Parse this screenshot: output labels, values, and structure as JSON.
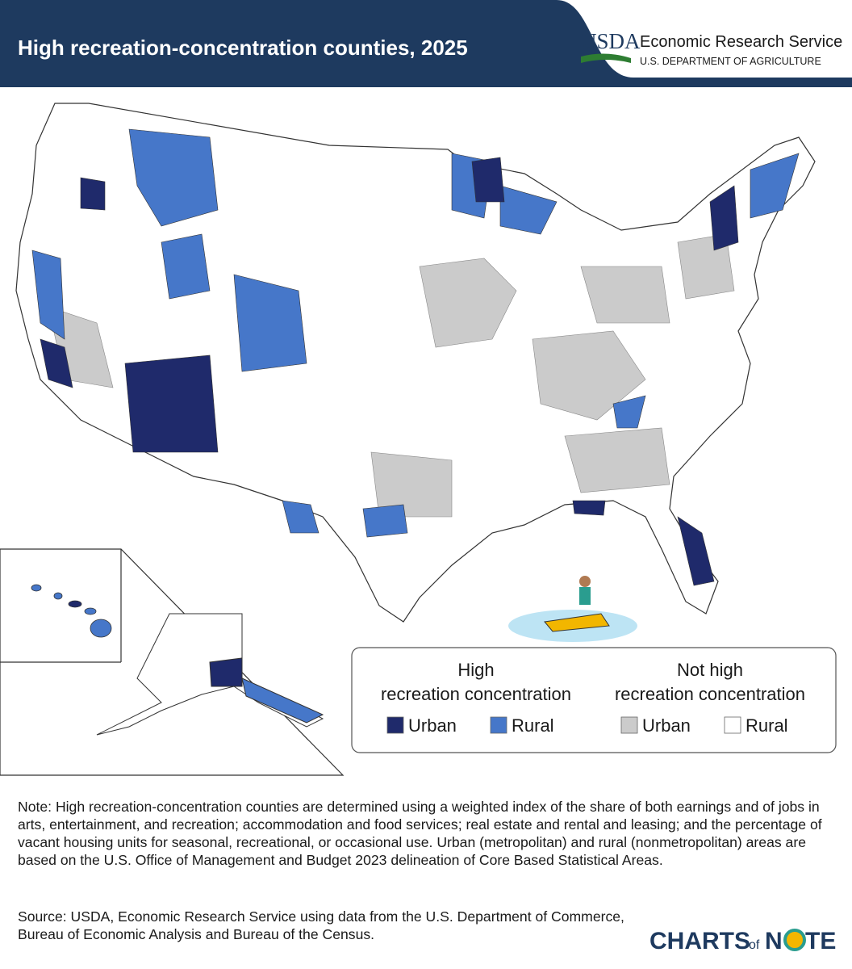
{
  "header": {
    "title": "High recreation-concentration counties, 2025",
    "logo": {
      "agency": "USDA",
      "name": "Economic Research Service",
      "department": "U.S. DEPARTMENT OF AGRICULTURE"
    }
  },
  "legend": {
    "groups": [
      {
        "title_lines": [
          "High",
          "recreation concentration"
        ],
        "items": [
          {
            "label": "Urban",
            "color": "#1f2a6b"
          },
          {
            "label": "Rural",
            "color": "#4677c9"
          }
        ]
      },
      {
        "title_lines": [
          "Not high",
          "recreation concentration"
        ],
        "items": [
          {
            "label": "Urban",
            "color": "#cbcbcb"
          },
          {
            "label": "Rural",
            "color": "#ffffff"
          }
        ]
      }
    ]
  },
  "note": "Note: High recreation-concentration counties are determined using a weighted index of the share of both earnings and of jobs in arts, entertainment, and recreation; accommodation and food services; real estate and rental and leasing; and the percentage of vacant housing units for seasonal, recreational, or occasional use. Urban (metropolitan) and rural (nonmetropolitan) areas are based on the U.S. Office of Management and Budget 2023 delineation of Core Based Statistical Areas.",
  "source": "Source: USDA, Economic Research Service using data from the U.S. Department of Commerce, Bureau of Economic Analysis and Bureau of the Census.",
  "brand": {
    "first": "CHARTS",
    "middle": "of",
    "letter": "N",
    "end": "TE"
  }
}
